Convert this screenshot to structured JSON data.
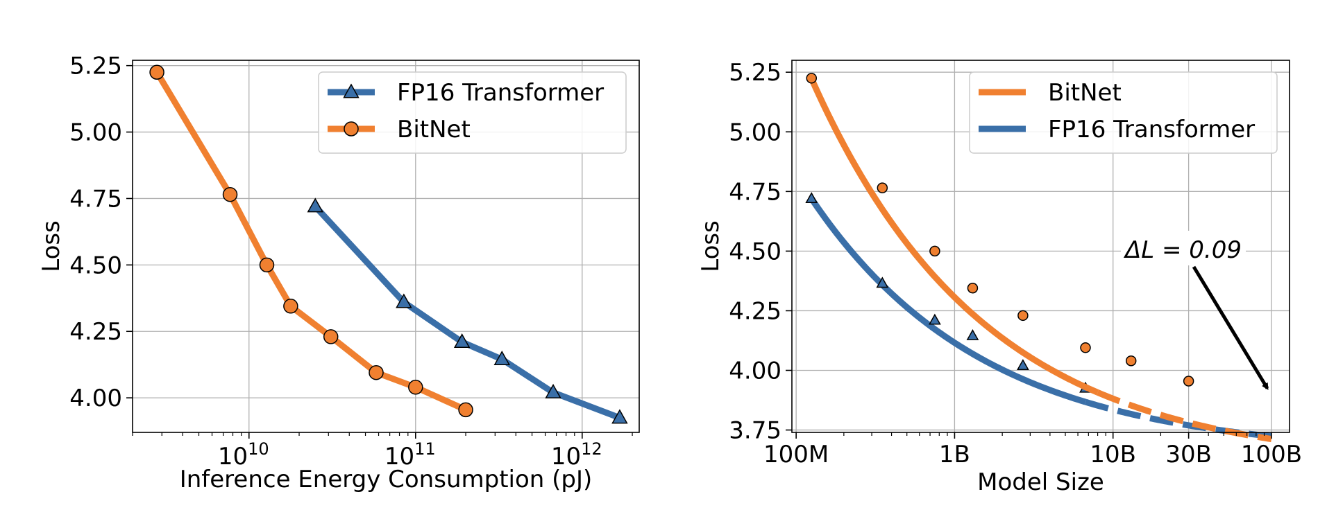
{
  "colors": {
    "fp16": "#3a6fa8",
    "bitnet": "#f08030"
  },
  "chart_data": [
    {
      "type": "line",
      "xscale": "log",
      "xlabel": "Inference Energy Consumption (pJ)",
      "ylabel": "Loss",
      "xlim": [
        2000000000,
        2200000000000
      ],
      "ylim": [
        3.87,
        5.27
      ],
      "grid": true,
      "legend_position": "top-right",
      "xticks": [
        {
          "value": 10000000000,
          "base": "10",
          "exp": "10"
        },
        {
          "value": 100000000000,
          "base": "10",
          "exp": "11"
        },
        {
          "value": 1000000000000,
          "base": "10",
          "exp": "12"
        }
      ],
      "yticks": [
        {
          "value": 4.0,
          "label": "4.00"
        },
        {
          "value": 4.25,
          "label": "4.25"
        },
        {
          "value": 4.5,
          "label": "4.50"
        },
        {
          "value": 4.75,
          "label": "4.75"
        },
        {
          "value": 5.0,
          "label": "5.00"
        },
        {
          "value": 5.25,
          "label": "5.25"
        }
      ],
      "series": [
        {
          "name": "FP16 Transformer",
          "marker": "triangle",
          "x": [
            25000000000,
            85000000000,
            190000000000,
            330000000000,
            670000000000,
            1680000000000
          ],
          "y": [
            4.72,
            4.36,
            4.21,
            4.145,
            4.02,
            3.925
          ]
        },
        {
          "name": "BitNet",
          "marker": "circle",
          "x": [
            2800000000,
            7700000000,
            12800000000,
            17800000000,
            31000000000,
            58000000000,
            100000000000,
            200000000000
          ],
          "y": [
            5.225,
            4.765,
            4.5,
            4.345,
            4.23,
            4.095,
            4.04,
            3.955
          ]
        }
      ]
    },
    {
      "type": "line",
      "xscale": "log",
      "xlabel": "Model Size",
      "ylabel": "Loss",
      "xlim": [
        94000000,
        130000000000
      ],
      "ylim": [
        3.74,
        5.3
      ],
      "grid": true,
      "legend_position": "top-right",
      "xticks": [
        {
          "value": 100000000,
          "label": "100M"
        },
        {
          "value": 1000000000,
          "label": "1B"
        },
        {
          "value": 10000000000,
          "label": "10B"
        },
        {
          "value": 30000000000,
          "label": "30B"
        },
        {
          "value": 100000000000,
          "label": "100B"
        }
      ],
      "yticks": [
        {
          "value": 3.75,
          "label": "3.75"
        },
        {
          "value": 4.0,
          "label": "4.00"
        },
        {
          "value": 4.25,
          "label": "4.25"
        },
        {
          "value": 4.5,
          "label": "4.50"
        },
        {
          "value": 4.75,
          "label": "4.75"
        },
        {
          "value": 5.0,
          "label": "5.00"
        },
        {
          "value": 5.25,
          "label": "5.25"
        }
      ],
      "series": [
        {
          "name": "BitNet",
          "style": "fitted-curve",
          "fit": {
            "E": 3.6,
            "A": 1.623,
            "alpha": 0.4,
            "n0": 125000000
          },
          "solid_to": 8000000000,
          "dashed_to": 100000000000,
          "points": {
            "x": [
              125000000,
              350000000,
              750000000,
              1300000000,
              2700000000,
              6700000000,
              13000000000,
              30000000000
            ],
            "y": [
              5.225,
              4.765,
              4.5,
              4.345,
              4.23,
              4.095,
              4.04,
              3.955
            ]
          }
        },
        {
          "name": "FP16 Transformer",
          "style": "fitted-curve",
          "fit": {
            "E": 3.65,
            "A": 1.07,
            "alpha": 0.4,
            "n0": 125000000
          },
          "solid_to": 6700000000,
          "dashed_to": 100000000000,
          "points": {
            "x": [
              125000000,
              350000000,
              750000000,
              1300000000,
              2700000000,
              6700000000
            ],
            "y": [
              4.72,
              4.365,
              4.21,
              4.145,
              4.02,
              3.925
            ]
          }
        }
      ],
      "annotation": {
        "text": "ΔL = 0.09",
        "delta_L": 0.09,
        "arrow_target_x": 100000000000,
        "arrow_target_y": 3.89
      }
    }
  ]
}
